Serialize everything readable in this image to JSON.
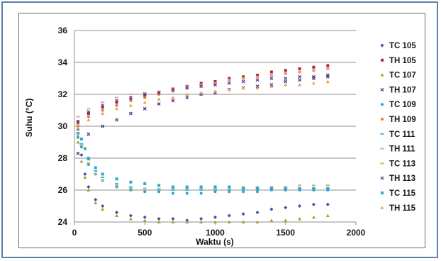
{
  "chart_data": {
    "type": "scatter",
    "title": "",
    "xlabel": "Waktu (s)",
    "ylabel": "Suhu (°C)",
    "xlim": [
      0,
      2000
    ],
    "ylim": [
      24,
      36
    ],
    "xticks": [
      "0",
      "500",
      "1000",
      "1500",
      "2000"
    ],
    "yticks": [
      "24",
      "26",
      "28",
      "30",
      "32",
      "34",
      "36"
    ],
    "grid": "horizontal",
    "legend_position": "right",
    "series": [
      {
        "name": "TC 105",
        "color": "#2a5a9e",
        "marker": "diamond",
        "x": [
          25,
          50,
          75,
          100,
          150,
          200,
          300,
          400,
          500,
          600,
          700,
          800,
          900,
          1000,
          1100,
          1200,
          1300,
          1400,
          1500,
          1600,
          1700,
          1800
        ],
        "y": [
          29.5,
          28.2,
          27.0,
          26.2,
          25.4,
          25.0,
          24.6,
          24.4,
          24.3,
          24.2,
          24.2,
          24.1,
          24.2,
          24.3,
          24.4,
          24.5,
          24.6,
          24.8,
          24.9,
          25.0,
          25.1,
          25.1
        ]
      },
      {
        "name": "TH 105",
        "color": "#b02a2a",
        "marker": "square",
        "x": [
          25,
          100,
          200,
          300,
          400,
          500,
          600,
          700,
          800,
          900,
          1000,
          1100,
          1200,
          1300,
          1400,
          1500,
          1600,
          1700,
          1800
        ],
        "y": [
          30.3,
          30.8,
          31.2,
          31.5,
          31.7,
          31.9,
          32.1,
          32.3,
          32.5,
          32.7,
          32.8,
          33.0,
          33.1,
          33.2,
          33.4,
          33.5,
          33.6,
          33.7,
          33.8
        ]
      },
      {
        "name": "TC 107",
        "color": "#a3a829",
        "marker": "triangle",
        "x": [
          25,
          50,
          75,
          100,
          150,
          200,
          300,
          400,
          500,
          600,
          700,
          800,
          900,
          1000,
          1100,
          1200,
          1300,
          1400,
          1500,
          1600,
          1700,
          1800
        ],
        "y": [
          29.0,
          27.8,
          26.8,
          26.0,
          25.2,
          24.8,
          24.4,
          24.2,
          24.1,
          24.0,
          24.0,
          24.0,
          24.0,
          24.0,
          24.0,
          24.0,
          24.0,
          24.1,
          24.1,
          24.2,
          24.3,
          24.4
        ]
      },
      {
        "name": "TH 107",
        "color": "#4a3b8c",
        "marker": "x",
        "x": [
          25,
          100,
          200,
          300,
          400,
          500,
          600,
          700,
          800,
          900,
          1000,
          1100,
          1200,
          1300,
          1400,
          1500,
          1600,
          1700,
          1800
        ],
        "y": [
          28.3,
          29.5,
          30.0,
          30.4,
          30.8,
          31.1,
          31.4,
          31.6,
          31.8,
          32.0,
          32.1,
          32.3,
          32.4,
          32.5,
          32.6,
          32.8,
          32.9,
          33.0,
          33.1
        ]
      },
      {
        "name": "TC 109",
        "color": "#2f9fd8",
        "marker": "dot",
        "x": [
          25,
          50,
          100,
          150,
          200,
          300,
          400,
          500,
          600,
          700,
          800,
          900,
          1000,
          1100,
          1200,
          1300,
          1400,
          1500,
          1600,
          1700,
          1800
        ],
        "y": [
          29.3,
          28.7,
          27.6,
          27.0,
          26.6,
          26.2,
          26.0,
          25.9,
          25.9,
          25.8,
          25.8,
          25.8,
          25.9,
          25.9,
          25.9,
          25.9,
          26.0,
          26.0,
          26.0,
          26.0,
          26.0
        ]
      },
      {
        "name": "TH 109",
        "color": "#e07a3a",
        "marker": "dot",
        "x": [
          25,
          100,
          200,
          300,
          400,
          500,
          600,
          700,
          800,
          900,
          1000,
          1100,
          1200,
          1300,
          1400,
          1500,
          1600,
          1700,
          1800
        ],
        "y": [
          30.0,
          30.6,
          31.0,
          31.3,
          31.6,
          31.8,
          32.0,
          32.2,
          32.4,
          32.6,
          32.7,
          32.9,
          33.0,
          33.1,
          33.2,
          33.3,
          33.4,
          33.5,
          33.6
        ]
      },
      {
        "name": "TC 111",
        "color": "#3fb6e0",
        "marker": "dash",
        "x": [
          25,
          50,
          100,
          150,
          200,
          300,
          400,
          500,
          600,
          700,
          800,
          900,
          1000,
          1100,
          1200,
          1300,
          1400,
          1500,
          1600,
          1700,
          1800
        ],
        "y": [
          29.6,
          28.9,
          27.9,
          27.2,
          26.8,
          26.4,
          26.2,
          26.1,
          26.0,
          26.0,
          26.0,
          26.0,
          26.0,
          26.0,
          26.1,
          26.1,
          26.1,
          26.1,
          26.1,
          26.1,
          26.1
        ]
      },
      {
        "name": "TH 111",
        "color": "#e3a0a8",
        "marker": "dash",
        "x": [
          25,
          100,
          200,
          300,
          400,
          500,
          600,
          700,
          800,
          900,
          1000,
          1100,
          1200,
          1300,
          1400,
          1500,
          1600,
          1700,
          1800
        ],
        "y": [
          30.6,
          31.1,
          31.5,
          31.8,
          32.0,
          32.1,
          32.2,
          32.4,
          32.5,
          32.6,
          32.7,
          32.9,
          33.0,
          33.1,
          33.2,
          33.3,
          33.4,
          33.5,
          33.6
        ]
      },
      {
        "name": "TC 113",
        "color": "#c8b85a",
        "marker": "dash",
        "x": [
          25,
          50,
          100,
          150,
          200,
          300,
          400,
          500,
          600,
          700,
          800,
          900,
          1000,
          1100,
          1200,
          1300,
          1400,
          1500,
          1600,
          1700,
          1800
        ],
        "y": [
          29.5,
          28.8,
          27.7,
          27.0,
          26.6,
          26.3,
          26.1,
          26.1,
          26.1,
          26.1,
          26.1,
          26.1,
          26.1,
          26.1,
          26.2,
          26.2,
          26.2,
          26.2,
          26.3,
          26.3,
          26.3
        ]
      },
      {
        "name": "TH 113",
        "color": "#5b3a8e",
        "marker": "x",
        "x": [
          25,
          100,
          200,
          300,
          400,
          500,
          600,
          700,
          800,
          900,
          1000,
          1100,
          1200,
          1300,
          1400,
          1500,
          1600,
          1700,
          1800
        ],
        "y": [
          30.2,
          30.9,
          31.3,
          31.6,
          31.8,
          32.0,
          32.1,
          32.3,
          32.4,
          32.5,
          32.6,
          32.7,
          32.8,
          32.9,
          33.0,
          33.0,
          33.1,
          33.1,
          33.2
        ]
      },
      {
        "name": "TC 115",
        "color": "#2aa8dc",
        "marker": "square",
        "x": [
          25,
          50,
          75,
          100,
          150,
          200,
          300,
          400,
          500,
          600,
          700,
          800,
          900,
          1000,
          1100,
          1200,
          1300,
          1400,
          1500,
          1600,
          1700,
          1800
        ],
        "y": [
          29.8,
          29.2,
          28.6,
          28.0,
          27.4,
          27.0,
          26.7,
          26.5,
          26.4,
          26.3,
          26.2,
          26.2,
          26.2,
          26.2,
          26.2,
          26.1,
          26.1,
          26.1,
          26.1,
          26.1,
          26.1,
          26.1
        ]
      },
      {
        "name": "TH 115",
        "color": "#f0a050",
        "marker": "triangle",
        "x": [
          25,
          100,
          200,
          300,
          400,
          500,
          600,
          700,
          800,
          900,
          1000,
          1100,
          1200,
          1300,
          1400,
          1500,
          1600,
          1700,
          1800
        ],
        "y": [
          29.9,
          30.4,
          30.8,
          31.1,
          31.3,
          31.5,
          31.7,
          31.8,
          32.0,
          32.1,
          32.2,
          32.3,
          32.4,
          32.4,
          32.5,
          32.6,
          32.6,
          32.7,
          32.8
        ]
      }
    ]
  }
}
